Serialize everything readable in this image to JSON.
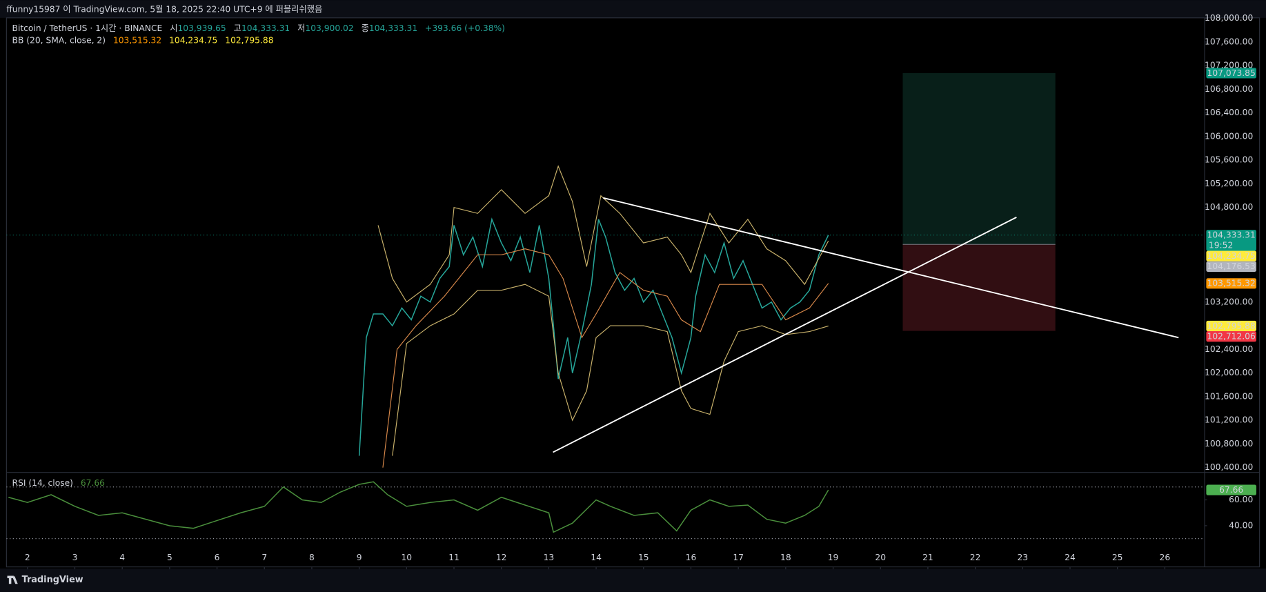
{
  "header": {
    "title": "ffunny15987 이 TradingView.com, 5월 18, 2025 22:40 UTC+9 에 퍼블리쉬했음"
  },
  "legend": {
    "symbol": "Bitcoin / TetherUS · 1시간 · BINANCE",
    "open_label": "시",
    "open": "103,939.65",
    "high_label": "고",
    "high": "104,333.31",
    "low_label": "저",
    "low": "103,900.02",
    "close_label": "종",
    "close": "104,333.31",
    "change": "+393.66 (+0.38%)",
    "bb_label": "BB (20, SMA, close, 2)",
    "bb_basis": "103,515.32",
    "bb_upper": "104,234.75",
    "bb_lower": "102,795.88",
    "rsi_label": "RSI (14, close)",
    "rsi_value": "67.66"
  },
  "chart_data": [
    {
      "type": "line",
      "xlim": [
        1.557,
        26.84
      ],
      "xticks": [
        2,
        3,
        4,
        5,
        6,
        7,
        8,
        9,
        10,
        11,
        12,
        13,
        14,
        15,
        16,
        17,
        18,
        19,
        20,
        21,
        22,
        23,
        24,
        25,
        26
      ],
      "ylim": [
        100318,
        108009
      ],
      "yticks": [
        {
          "value": 100400,
          "label": "100,400.00"
        },
        {
          "value": 100800,
          "label": "100,800.00"
        },
        {
          "value": 101200,
          "label": "101,200.00"
        },
        {
          "value": 101600,
          "label": "101,600.00"
        },
        {
          "value": 102000,
          "label": "102,000.00"
        },
        {
          "value": 102400,
          "label": "102,400.00"
        },
        {
          "value": 103200,
          "label": "103,200.00"
        },
        {
          "value": 104800,
          "label": "104,800.00"
        },
        {
          "value": 105200,
          "label": "105,200.00"
        },
        {
          "value": 105600,
          "label": "105,600.00"
        },
        {
          "value": 106000,
          "label": "106,000.00"
        },
        {
          "value": 106400,
          "label": "106,400.00"
        },
        {
          "value": 106800,
          "label": "106,800.00"
        },
        {
          "value": 107200,
          "label": "107,200.00"
        },
        {
          "value": 107600,
          "label": "107,600.00"
        },
        {
          "value": 108000,
          "label": "108,000.00"
        }
      ],
      "series": [
        {
          "color": "#26a69a",
          "x": [
            9.0,
            9.15,
            9.3,
            9.5,
            9.7,
            9.9,
            10.1,
            10.3,
            10.5,
            10.7,
            10.9,
            11.0,
            11.2,
            11.4,
            11.6,
            11.8,
            12.0,
            12.2,
            12.4,
            12.6,
            12.8,
            13.0,
            13.1,
            13.2,
            13.4,
            13.5,
            13.7,
            13.9,
            14.05,
            14.2,
            14.4,
            14.6,
            14.8,
            15.0,
            15.2,
            15.4,
            15.6,
            15.8,
            16.0,
            16.1,
            16.3,
            16.5,
            16.7,
            16.9,
            17.1,
            17.3,
            17.5,
            17.7,
            17.9,
            18.1,
            18.3,
            18.5,
            18.7,
            18.9
          ],
          "values": [
            100600,
            102600,
            103000,
            103000,
            102800,
            103100,
            102900,
            103300,
            103200,
            103600,
            103800,
            104500,
            104000,
            104300,
            103800,
            104600,
            104200,
            103900,
            104300,
            103700,
            104500,
            103600,
            102800,
            101900,
            102600,
            102000,
            102700,
            103500,
            104600,
            104300,
            103700,
            103400,
            103600,
            103200,
            103400,
            103000,
            102600,
            102000,
            102600,
            103300,
            104000,
            103700,
            104200,
            103600,
            103900,
            103500,
            103100,
            103200,
            102900,
            103100,
            103200,
            103400,
            104000,
            104333.31
          ]
        },
        {
          "color": "#c9b26b",
          "x": [
            9.4,
            9.7,
            10.0,
            10.5,
            10.9,
            11.0,
            11.5,
            12.0,
            12.5,
            13.0,
            13.2,
            13.5,
            13.8,
            14.1,
            14.5,
            15.0,
            15.5,
            15.8,
            16.0,
            16.4,
            16.8,
            17.2,
            17.6,
            18.0,
            18.4,
            18.9
          ],
          "values": [
            104500,
            103600,
            103200,
            103500,
            104000,
            104800,
            104700,
            105100,
            104700,
            105000,
            105500,
            104900,
            103800,
            105000,
            104700,
            104200,
            104300,
            104000,
            103700,
            104700,
            104200,
            104600,
            104100,
            103900,
            103500,
            104234.75
          ]
        },
        {
          "color": "#d7884a",
          "x": [
            9.5,
            9.8,
            10.2,
            10.8,
            11.5,
            12.0,
            12.5,
            13.0,
            13.3,
            13.7,
            14.0,
            14.5,
            15.0,
            15.5,
            15.8,
            16.2,
            16.6,
            17.0,
            17.5,
            18.0,
            18.5,
            18.9
          ],
          "values": [
            100400,
            102400,
            102800,
            103300,
            104000,
            104000,
            104100,
            104000,
            103600,
            102600,
            103000,
            103700,
            103400,
            103300,
            102900,
            102700,
            103500,
            103500,
            103500,
            102900,
            103100,
            103515.32
          ]
        },
        {
          "color": "#c9b26b",
          "x": [
            9.7,
            10.0,
            10.5,
            11.0,
            11.5,
            12.0,
            12.5,
            13.0,
            13.2,
            13.5,
            13.8,
            14.0,
            14.3,
            15.0,
            15.5,
            15.8,
            16.0,
            16.4,
            16.7,
            17.0,
            17.5,
            18.0,
            18.5,
            18.9
          ],
          "values": [
            100600,
            102500,
            102800,
            103000,
            103400,
            103400,
            103500,
            103300,
            102000,
            101200,
            101700,
            102600,
            102800,
            102800,
            102700,
            101700,
            101400,
            101300,
            102200,
            102700,
            102800,
            102650,
            102700,
            102795.88
          ]
        }
      ],
      "trendlines": [
        {
          "color": "#ffffff",
          "x": [
            14.15,
            26.29
          ],
          "y": [
            104963,
            102599
          ]
        },
        {
          "color": "#ffffff",
          "x": [
            13.09,
            22.87
          ],
          "y": [
            100660,
            104635
          ]
        }
      ],
      "position": {
        "x": [
          20.47,
          23.69
        ],
        "target": 107073.85,
        "entry": 104176.53,
        "stop": 102712.06
      },
      "last_price": {
        "value": 104333.31,
        "label": "104,333.31",
        "countdown": "19:52",
        "color": "#089981"
      },
      "price_labels": [
        {
          "value": 107073.85,
          "label": "107,073.85",
          "color": "#089981"
        },
        {
          "value": 104234.75,
          "label": "104,234.75",
          "color": "#ffeb3b"
        },
        {
          "value": 104176.53,
          "label": "104,176.53",
          "color": "#b2b5be"
        },
        {
          "value": 103515.32,
          "label": "103,515.32",
          "color": "#ff9800"
        },
        {
          "value": 102795.88,
          "label": "102,795.88",
          "color": "#ffeb3b"
        },
        {
          "value": 102712.06,
          "label": "102,712.06",
          "color": "#f23645"
        }
      ]
    },
    {
      "type": "line",
      "xlim": [
        1.557,
        26.84
      ],
      "ylim": [
        8.1,
        81.25
      ],
      "yticks": [
        {
          "value": 60,
          "label": "60.00"
        },
        {
          "value": 40,
          "label": "40.00"
        }
      ],
      "levels": [
        70,
        30
      ],
      "series": [
        {
          "color": "#4a8f3c",
          "x": [
            1.6,
            2.0,
            2.5,
            3.0,
            3.5,
            4.0,
            4.5,
            5.0,
            5.5,
            6.0,
            6.5,
            7.0,
            7.4,
            7.8,
            8.2,
            8.6,
            9.0,
            9.3,
            9.6,
            10.0,
            10.5,
            11.0,
            11.5,
            12.0,
            12.5,
            13.0,
            13.1,
            13.5,
            14.0,
            14.3,
            14.8,
            15.3,
            15.7,
            16.0,
            16.4,
            16.8,
            17.2,
            17.6,
            18.0,
            18.4,
            18.7,
            18.9
          ],
          "values": [
            62,
            58,
            64,
            55,
            48,
            50,
            45,
            40,
            38,
            44,
            50,
            55,
            70,
            60,
            58,
            66,
            72,
            74,
            64,
            55,
            58,
            60,
            52,
            62,
            56,
            50,
            35,
            42,
            60,
            55,
            48,
            50,
            36,
            52,
            60,
            55,
            56,
            45,
            42,
            48,
            55,
            67.66
          ]
        }
      ],
      "last": {
        "value": 67.66,
        "label": "67.66",
        "color": "#4caf50"
      }
    }
  ],
  "footer": {
    "brand": "TradingView"
  }
}
